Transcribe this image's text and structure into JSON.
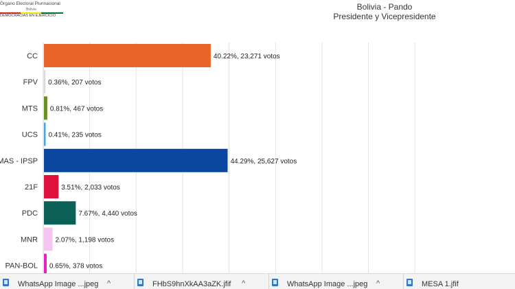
{
  "header": {
    "org_line1": "Órgano Electoral Plurinacional",
    "org_line2": "Bolivia",
    "org_line3": "DEMOCRACIAS EN EJERCICIO",
    "title_line1": "Bolivia - Pando",
    "title_line2": "Presidente y Vicepresidente"
  },
  "chart_data": {
    "type": "bar",
    "orientation": "horizontal",
    "categories": [
      "CC",
      "FPV",
      "MTS",
      "UCS",
      "MAS - IPSP",
      "21F",
      "PDC",
      "MNR",
      "PAN-BOL"
    ],
    "percent": [
      40.22,
      0.36,
      0.81,
      0.41,
      44.29,
      3.51,
      7.67,
      2.07,
      0.65
    ],
    "votes": [
      23271,
      207,
      467,
      235,
      25627,
      2033,
      4440,
      1198,
      378
    ],
    "data_labels": [
      "40.22%,  23,271 votos",
      "0.36%,  207 votos",
      "0.81%,  467 votos",
      "0.41%,  235 votos",
      "44.29%,  25,627 votos",
      "3.51%,  2,033 votos",
      "7.67%,  4,440 votos",
      "2.07%,  1,198 votos",
      "0.65%,  378 votos"
    ],
    "colors": [
      "#e9652a",
      "#d9d9d9",
      "#6b8e23",
      "#4aa3df",
      "#0a47a0",
      "#e0113c",
      "#0b6157",
      "#f7c6f0",
      "#e51fc4"
    ],
    "xlim": [
      0,
      100
    ],
    "grid": true
  },
  "downloads": [
    {
      "name": "WhatsApp Image ...jpeg"
    },
    {
      "name": "FHbS9hnXkAA3aZK.jfif"
    },
    {
      "name": "WhatsApp Image ...jpeg"
    },
    {
      "name": "MESA 1.jfif"
    }
  ],
  "icons": {
    "arrow": "^",
    "file": "file-icon"
  }
}
